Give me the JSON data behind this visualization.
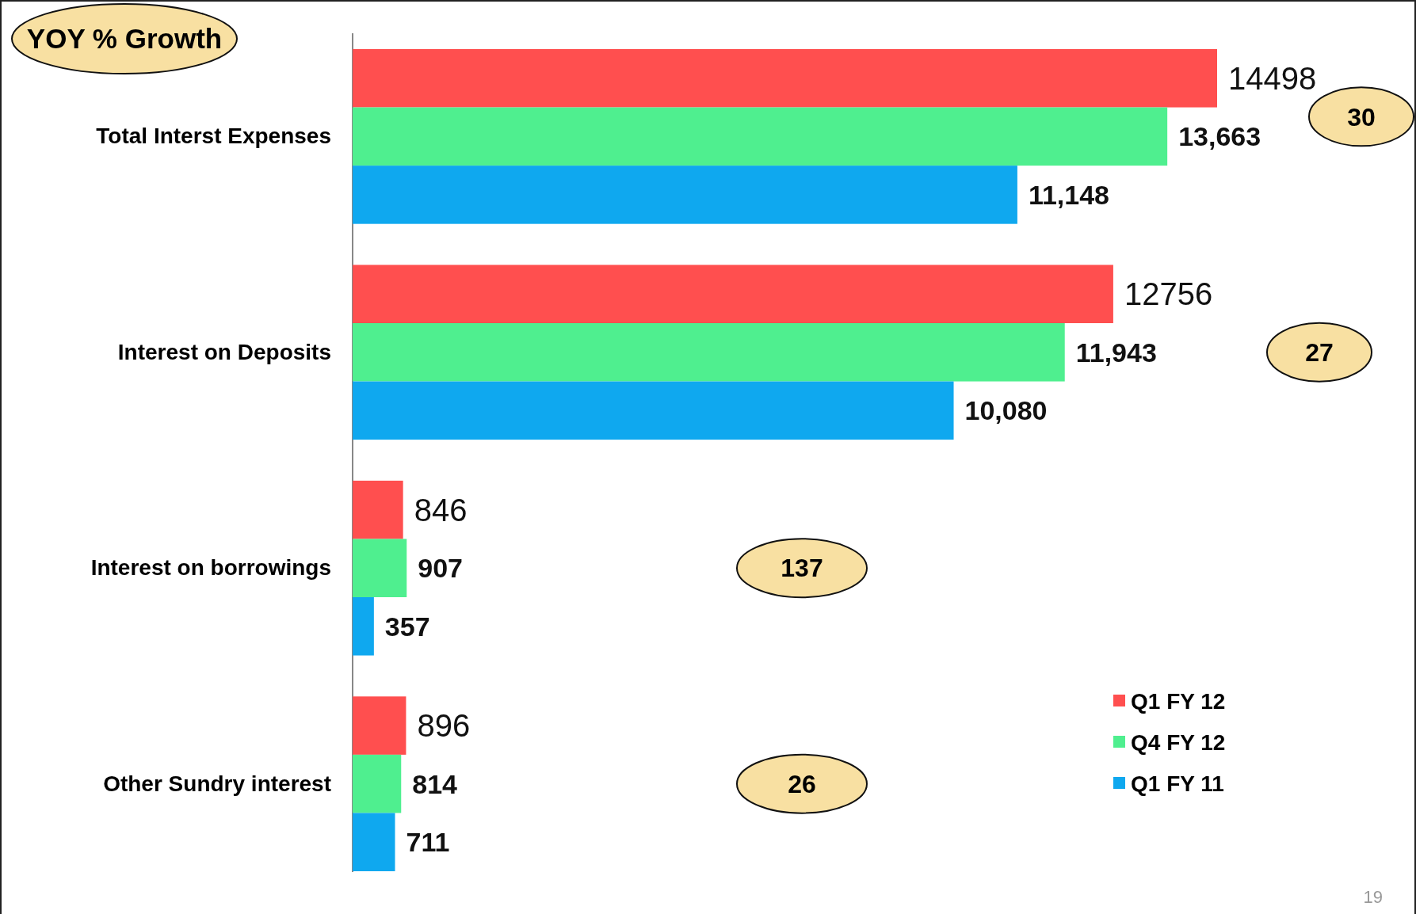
{
  "chart_data": {
    "type": "bar",
    "orientation": "horizontal",
    "categories": [
      "Total Interst Expenses",
      "Interest on Deposits",
      "Interest on borrowings",
      "Other Sundry interest"
    ],
    "series": [
      {
        "name": "Q1 FY 12",
        "color": "#ff4f4f",
        "values": [
          14498,
          12756,
          846,
          896
        ],
        "value_labels": [
          "14498",
          "12756",
          "846",
          "896"
        ]
      },
      {
        "name": "Q4 FY 12",
        "color": "#4fef8f",
        "values": [
          13663,
          11943,
          907,
          814
        ],
        "value_labels": [
          "13,663",
          "11,943",
          "907",
          "814"
        ]
      },
      {
        "name": "Q1 FY 11",
        "color": "#0fa8ef",
        "values": [
          11148,
          10080,
          357,
          711
        ],
        "value_labels": [
          "11,148",
          "10,080",
          "357",
          "711"
        ]
      }
    ],
    "tick_labels": "y",
    "legend": "bottom right",
    "annotations": [
      "YOY % Growth",
      "30",
      "27",
      "137",
      "26",
      "19"
    ]
  }
}
